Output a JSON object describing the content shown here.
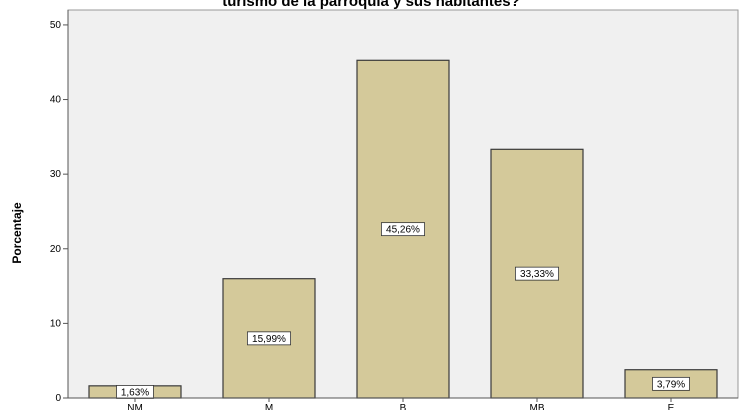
{
  "chart_data": {
    "type": "bar",
    "title": "turismo de la parroquia y sus habitantes?",
    "xlabel": "",
    "ylabel": "Porcentaje",
    "categories": [
      "NM",
      "M",
      "B",
      "MB",
      "E"
    ],
    "values": [
      1.63,
      15.99,
      45.26,
      33.33,
      3.79
    ],
    "data_labels": [
      "1,63%",
      "15,99%",
      "45,26%",
      "33,33%",
      "3,79%"
    ],
    "ylim": [
      0,
      52
    ],
    "yticks": [
      0,
      10,
      20,
      30,
      40,
      50
    ],
    "grid": false,
    "legend": "none",
    "colors": {
      "bar_fill": "#d4c99a",
      "bar_stroke": "#3a3a3a",
      "plot_background": "#f0f0f0",
      "axis": "#555555"
    }
  }
}
